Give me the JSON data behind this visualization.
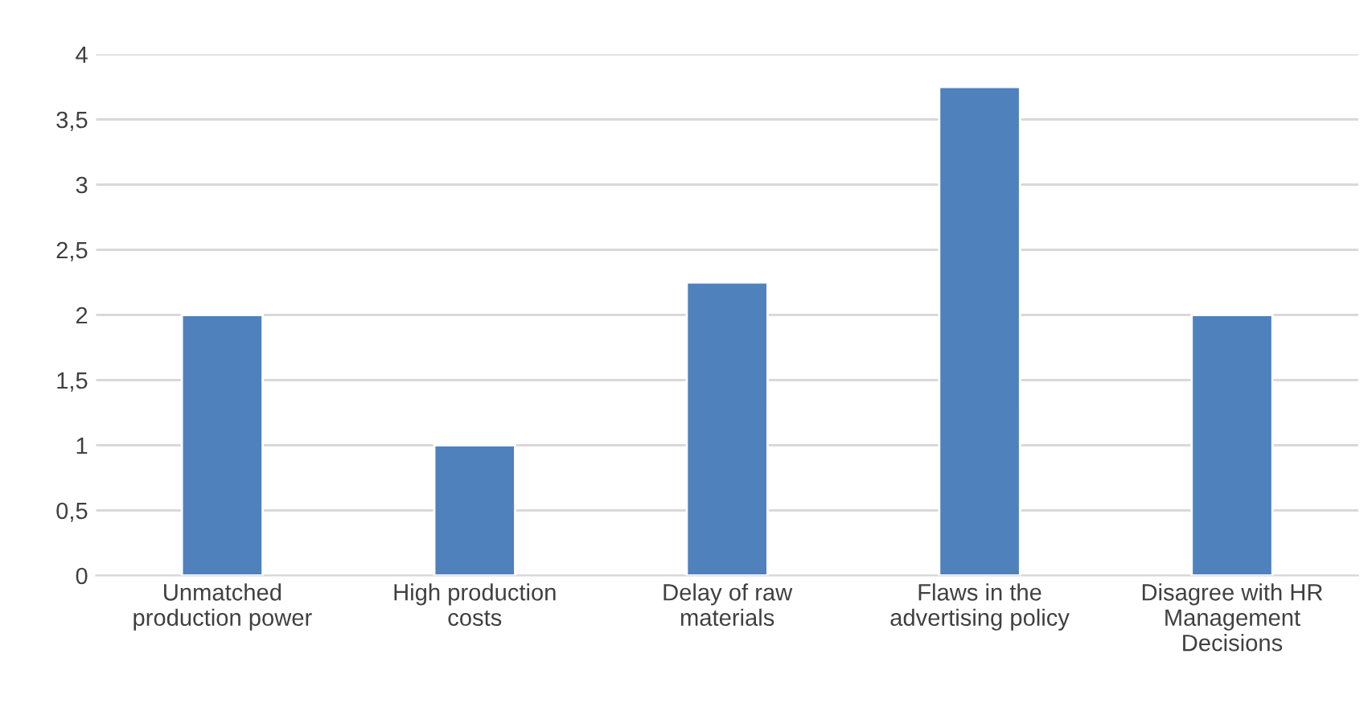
{
  "chart_data": {
    "type": "bar",
    "categories": [
      "Unmatched\nproduction power",
      "High production\ncosts",
      "Delay of raw\nmaterials",
      "Flaws in the\nadvertising policy",
      "Disagree with HR\nManagement\nDecisions"
    ],
    "values": [
      2,
      1,
      2.25,
      3.75,
      2
    ],
    "color": "#4f81bd",
    "ylim": [
      0,
      4
    ],
    "yticks": [
      0,
      {
        "value": 0.5,
        "label": "0,5"
      },
      1,
      {
        "value": 1.5,
        "label": "1,5"
      },
      2,
      {
        "value": 2.5,
        "label": "2,5"
      },
      3,
      {
        "value": 3.5,
        "label": "3,5"
      },
      4
    ],
    "grid": "y",
    "legend": false
  }
}
